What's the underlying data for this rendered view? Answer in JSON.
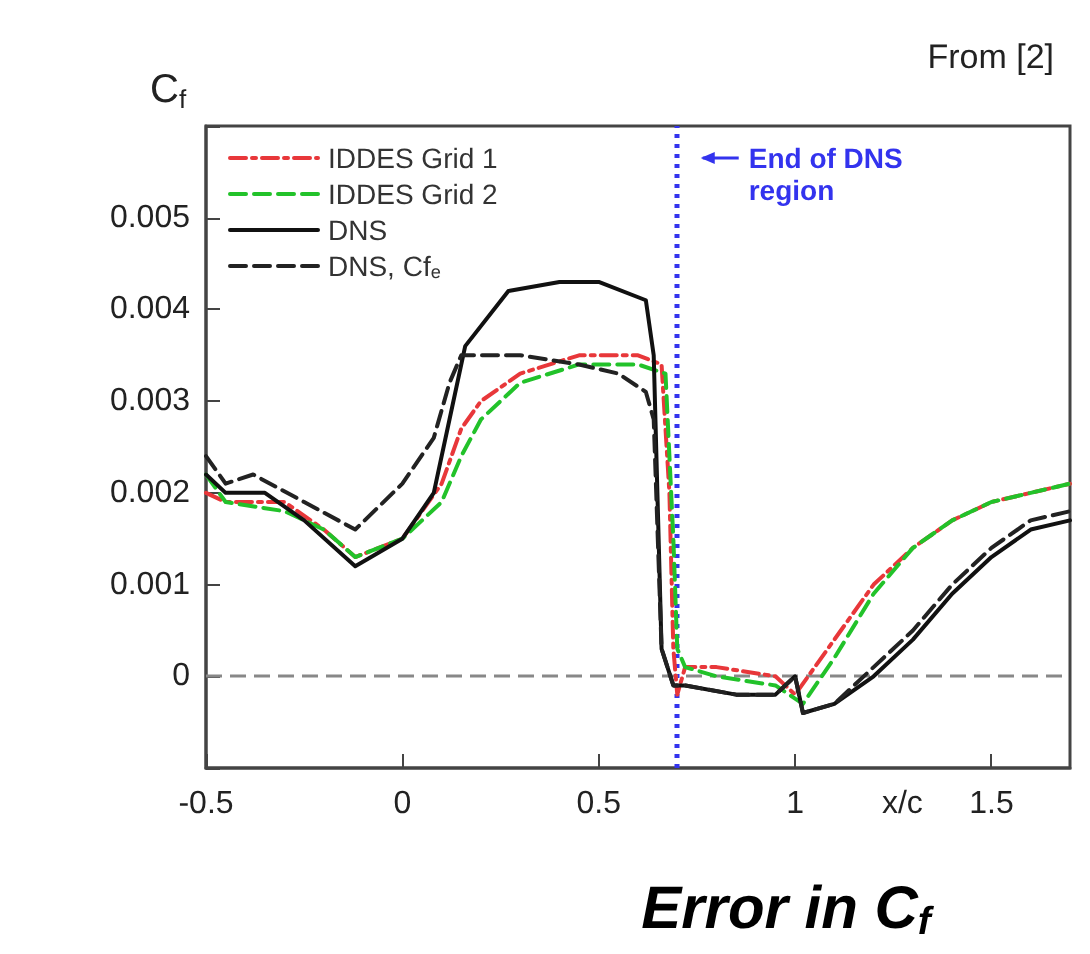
{
  "chart_data": {
    "type": "line",
    "title": "Error in C$_{f}$",
    "ylabel": "C$_{f}$",
    "xlabel": "x/c",
    "annotations": [
      "From [2]"
    ],
    "xlim": [
      -0.5,
      1.7
    ],
    "xticks": [
      -0.5,
      0,
      0.5,
      1,
      1.5
    ],
    "ylim": [
      -0.001,
      0.006
    ],
    "yticks": [
      {
        "value": -0.001,
        "label": null
      },
      0,
      0.001,
      0.002,
      0.003,
      0.004,
      0.005,
      {
        "value": 0.006,
        "label": null
      }
    ],
    "grid": false,
    "legend": "top left",
    "marker": "none",
    "ref_lines": [
      {
        "axis": "x",
        "value": 0.7,
        "label": "End of DNS region",
        "color": "#3333ee",
        "line_style": "dotted"
      },
      {
        "axis": "y",
        "value": 0,
        "label": null,
        "color": "#888888",
        "line_style": "dashed"
      }
    ],
    "series": [
      {
        "name": "IDDES Grid 1",
        "color": "#e8373a",
        "line_style": "dashdot",
        "x": [
          -0.5,
          -0.45,
          -0.3,
          -0.2,
          -0.12,
          0,
          0.1,
          0.15,
          0.2,
          0.3,
          0.45,
          0.6,
          0.66,
          0.68,
          0.69,
          0.7,
          0.72,
          0.8,
          0.95,
          1.0,
          1.05,
          1.1,
          1.2,
          1.3,
          1.4,
          1.5,
          1.6,
          1.7
        ],
        "values": [
          0.002,
          0.0019,
          0.0019,
          0.0016,
          0.0013,
          0.0015,
          0.0021,
          0.0027,
          0.003,
          0.0033,
          0.0035,
          0.0035,
          0.0034,
          0.002,
          0.0003,
          -0.0002,
          0.0001,
          0.0001,
          0,
          -0.0002,
          0.0001,
          0.0004,
          0.001,
          0.0014,
          0.0017,
          0.0019,
          0.002,
          0.0021
        ]
      },
      {
        "name": "IDDES Grid 2",
        "color": "#22c22a",
        "line_style": "dashed",
        "x": [
          -0.5,
          -0.45,
          -0.3,
          -0.2,
          -0.12,
          0,
          0.1,
          0.15,
          0.2,
          0.3,
          0.45,
          0.6,
          0.67,
          0.69,
          0.7,
          0.72,
          0.8,
          0.95,
          1.02,
          1.1,
          1.2,
          1.3,
          1.4,
          1.5,
          1.6,
          1.7
        ],
        "values": [
          0.0022,
          0.0019,
          0.0018,
          0.0016,
          0.0013,
          0.0015,
          0.0019,
          0.0024,
          0.0028,
          0.0032,
          0.0034,
          0.0034,
          0.0033,
          0.0015,
          0.0003,
          0.0001,
          0,
          -0.0001,
          -0.0003,
          0.0002,
          0.0009,
          0.0014,
          0.0017,
          0.0019,
          0.002,
          0.0021
        ]
      },
      {
        "name": "DNS",
        "color": "#111111",
        "line_style": "solid",
        "x": [
          -0.5,
          -0.45,
          -0.35,
          -0.25,
          -0.12,
          0,
          0.08,
          0.12,
          0.16,
          0.27,
          0.4,
          0.5,
          0.62,
          0.64,
          0.66,
          0.69,
          0.72,
          0.85,
          0.95,
          1.0,
          1.02,
          1.1,
          1.2,
          1.3,
          1.4,
          1.5,
          1.6,
          1.7
        ],
        "values": [
          0.0022,
          0.002,
          0.002,
          0.0017,
          0.0012,
          0.0015,
          0.002,
          0.0028,
          0.0036,
          0.0042,
          0.0043,
          0.0043,
          0.0041,
          0.0035,
          0.0003,
          -0.0001,
          -0.0001,
          -0.0002,
          -0.0002,
          0,
          -0.0004,
          -0.0003,
          0,
          0.0004,
          0.0009,
          0.0013,
          0.0016,
          0.0017
        ]
      },
      {
        "name": "DNS, Cf$_{e}$",
        "color": "#222222",
        "line_style": "dashed",
        "x": [
          -0.5,
          -0.45,
          -0.38,
          -0.25,
          -0.12,
          0,
          0.08,
          0.12,
          0.15,
          0.2,
          0.3,
          0.45,
          0.55,
          0.62,
          0.64,
          0.66,
          0.69,
          0.72,
          0.85,
          0.95,
          1.0,
          1.02,
          1.1,
          1.2,
          1.3,
          1.4,
          1.5,
          1.6,
          1.7
        ],
        "values": [
          0.0024,
          0.0021,
          0.0022,
          0.0019,
          0.0016,
          0.0021,
          0.0026,
          0.0032,
          0.0035,
          0.0035,
          0.0035,
          0.0034,
          0.0033,
          0.0031,
          0.0028,
          0.0003,
          -0.0001,
          -0.0001,
          -0.0002,
          -0.0002,
          0,
          -0.0004,
          -0.0003,
          0.0001,
          0.0005,
          0.001,
          0.0014,
          0.0017,
          0.0018
        ]
      }
    ]
  }
}
